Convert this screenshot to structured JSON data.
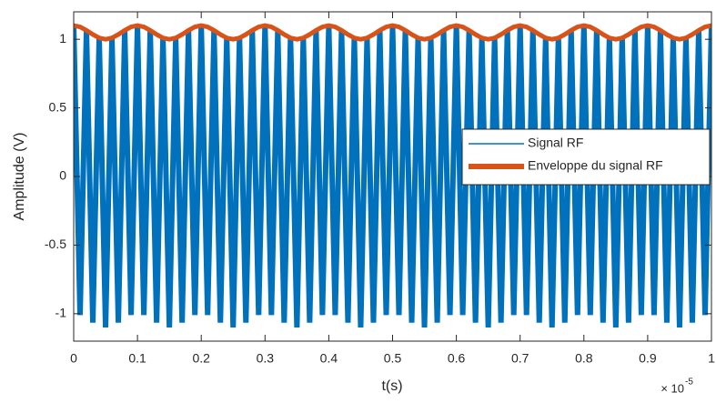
{
  "chart_data": {
    "type": "line",
    "xlabel": "t(s)",
    "ylabel": "Amplitude (V)",
    "x_exponent_base": "× 10",
    "x_exponent": "-5",
    "x": [
      0,
      0.01,
      0.02,
      0.03,
      0.04,
      0.05,
      0.06,
      0.07,
      0.08,
      0.09,
      0.1,
      0.11,
      0.12,
      0.13,
      0.14,
      0.15,
      0.16,
      0.17,
      0.18,
      0.19,
      0.2,
      0.21,
      0.22,
      0.23,
      0.24,
      0.25,
      0.26,
      0.27,
      0.28,
      0.29,
      0.3,
      0.31,
      0.32,
      0.33,
      0.34,
      0.35,
      0.36,
      0.37,
      0.38,
      0.39,
      0.4,
      0.41,
      0.42,
      0.43,
      0.44,
      0.45,
      0.46,
      0.47,
      0.48,
      0.49,
      0.5,
      0.51,
      0.52,
      0.53,
      0.54,
      0.55,
      0.56,
      0.57,
      0.58,
      0.59,
      0.6,
      0.61,
      0.62,
      0.63,
      0.64,
      0.65,
      0.66,
      0.67,
      0.68,
      0.69,
      0.7,
      0.71,
      0.72,
      0.73,
      0.74,
      0.75,
      0.76,
      0.77,
      0.78,
      0.79,
      0.8,
      0.81,
      0.82,
      0.83,
      0.84,
      0.85,
      0.86,
      0.87,
      0.88,
      0.89,
      0.9,
      0.91,
      0.92,
      0.93,
      0.94,
      0.95,
      0.96,
      0.97,
      0.98,
      0.99,
      1
    ],
    "series": [
      {
        "name": "Signal RF",
        "color": "#0072bd",
        "values": [
          1.1,
          -1.01,
          1.065,
          -1.065,
          1.01,
          -1.1,
          1.01,
          -1.065,
          1.065,
          -1.01,
          1.1,
          -1.01,
          1.065,
          -1.065,
          1.01,
          -1.1,
          1.01,
          -1.065,
          1.065,
          -1.01,
          1.1,
          -1.01,
          1.065,
          -1.065,
          1.01,
          -1.1,
          1.01,
          -1.065,
          1.065,
          -1.01,
          1.1,
          -1.01,
          1.065,
          -1.065,
          1.01,
          -1.1,
          1.01,
          -1.065,
          1.065,
          -1.01,
          1.1,
          -1.01,
          1.065,
          -1.065,
          1.01,
          -1.1,
          1.01,
          -1.065,
          1.065,
          -1.01,
          1.1,
          -1.01,
          1.065,
          -1.065,
          1.01,
          -1.1,
          1.01,
          -1.065,
          1.065,
          -1.01,
          1.1,
          -1.01,
          1.065,
          -1.065,
          1.01,
          -1.1,
          1.01,
          -1.065,
          1.065,
          -1.01,
          1.1,
          -1.01,
          1.065,
          -1.065,
          1.01,
          -1.1,
          1.01,
          -1.065,
          1.065,
          -1.01,
          1.1,
          -1.01,
          1.065,
          -1.065,
          1.01,
          -1.1,
          1.01,
          -1.065,
          1.065,
          -1.01,
          1.1,
          -1.01,
          1.065,
          -1.065,
          1.01,
          -1.1,
          1.01,
          -1.065,
          1.065,
          -1.01,
          1.1
        ]
      },
      {
        "name": "Enveloppe du signal RF",
        "color": "#d95319",
        "values": [
          1.1,
          1.09,
          1.065,
          1.035,
          1.01,
          1,
          1.01,
          1.035,
          1.065,
          1.09,
          1.1,
          1.09,
          1.065,
          1.035,
          1.01,
          1,
          1.01,
          1.035,
          1.065,
          1.09,
          1.1,
          1.09,
          1.065,
          1.035,
          1.01,
          1,
          1.01,
          1.035,
          1.065,
          1.09,
          1.1,
          1.09,
          1.065,
          1.035,
          1.01,
          1,
          1.01,
          1.035,
          1.065,
          1.09,
          1.1,
          1.09,
          1.065,
          1.035,
          1.01,
          1,
          1.01,
          1.035,
          1.065,
          1.09,
          1.1,
          1.09,
          1.065,
          1.035,
          1.01,
          1,
          1.01,
          1.035,
          1.065,
          1.09,
          1.1,
          1.09,
          1.065,
          1.035,
          1.01,
          1,
          1.01,
          1.035,
          1.065,
          1.09,
          1.1,
          1.09,
          1.065,
          1.035,
          1.01,
          1,
          1.01,
          1.035,
          1.065,
          1.09,
          1.1,
          1.09,
          1.065,
          1.035,
          1.01,
          1,
          1.01,
          1.035,
          1.065,
          1.09,
          1.1,
          1.09,
          1.065,
          1.035,
          1.01,
          1,
          1.01,
          1.035,
          1.065,
          1.09,
          1.1
        ]
      }
    ],
    "xlim": [
      0,
      1
    ],
    "xticks": [
      0,
      0.1,
      0.2,
      0.3,
      0.4,
      0.5,
      0.6,
      0.7,
      0.8,
      0.9,
      1
    ],
    "ylim": [
      -1.2,
      1.2
    ],
    "yticks": [
      -1,
      -0.5,
      0,
      0.5,
      1
    ],
    "legend": "right"
  }
}
